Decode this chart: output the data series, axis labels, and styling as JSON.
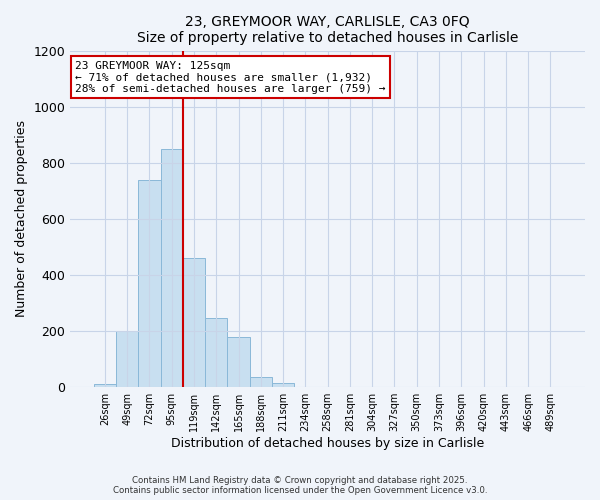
{
  "title": "23, GREYMOOR WAY, CARLISLE, CA3 0FQ",
  "subtitle": "Size of property relative to detached houses in Carlisle",
  "xlabel": "Distribution of detached houses by size in Carlisle",
  "ylabel": "Number of detached properties",
  "bar_labels": [
    "26sqm",
    "49sqm",
    "72sqm",
    "95sqm",
    "119sqm",
    "142sqm",
    "165sqm",
    "188sqm",
    "211sqm",
    "234sqm",
    "258sqm",
    "281sqm",
    "304sqm",
    "327sqm",
    "350sqm",
    "373sqm",
    "396sqm",
    "420sqm",
    "443sqm",
    "466sqm",
    "489sqm"
  ],
  "bar_values": [
    10,
    200,
    740,
    850,
    460,
    248,
    178,
    35,
    15,
    0,
    0,
    0,
    0,
    0,
    0,
    0,
    0,
    0,
    0,
    0,
    0
  ],
  "bar_color": "#c8dff0",
  "bar_edge_color": "#8ab8d8",
  "vline_color": "#cc0000",
  "annotation_title": "23 GREYMOOR WAY: 125sqm",
  "annotation_line1": "← 71% of detached houses are smaller (1,932)",
  "annotation_line2": "28% of semi-detached houses are larger (759) →",
  "annotation_box_color": "#cc0000",
  "annotation_bg_color": "#ffffff",
  "ylim": [
    0,
    1200
  ],
  "yticks": [
    0,
    200,
    400,
    600,
    800,
    1000,
    1200
  ],
  "footer_line1": "Contains HM Land Registry data © Crown copyright and database right 2025.",
  "footer_line2": "Contains public sector information licensed under the Open Government Licence v3.0.",
  "bg_color": "#f0f4fa",
  "grid_color": "#c8d4e8"
}
